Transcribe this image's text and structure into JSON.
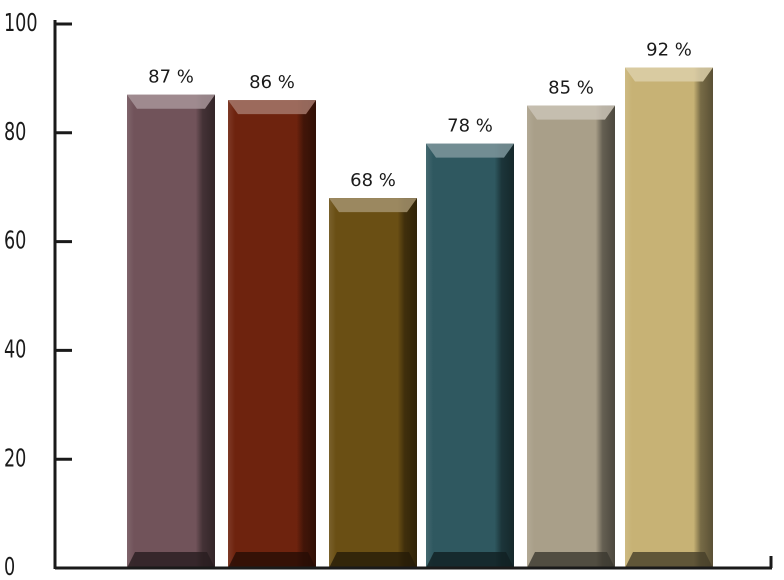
{
  "chart_data": {
    "type": "bar",
    "title": "",
    "xlabel": "",
    "ylabel": "",
    "ylim": [
      0,
      100
    ],
    "yticks": [
      0,
      20,
      40,
      60,
      80,
      100
    ],
    "grid": false,
    "legend": "none",
    "values": [
      87,
      86,
      68,
      78,
      85,
      92
    ],
    "data_labels": [
      "87 %",
      "86 %",
      "68 %",
      "78 %",
      "85 %",
      "92 %"
    ],
    "bar_colors": [
      "#71535a",
      "#6e230e",
      "#6a4f14",
      "#2f5860",
      "#a99f89",
      "#c7b275"
    ]
  }
}
